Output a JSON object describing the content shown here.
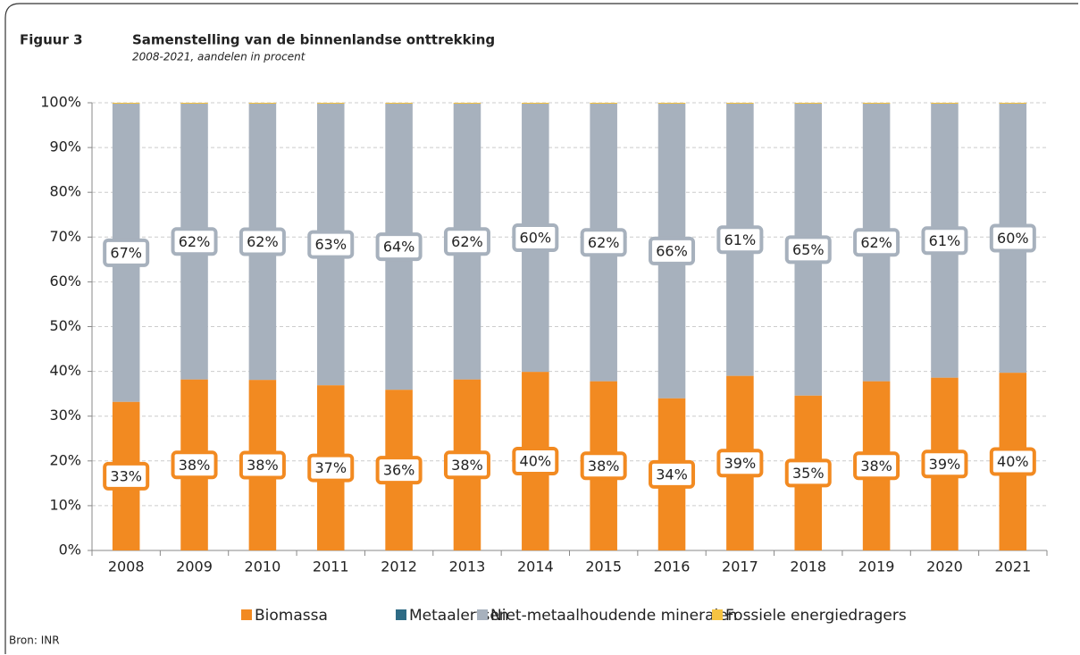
{
  "chart_data": {
    "type": "stacked-bar",
    "figure_label": "Figuur 3",
    "title": "Samenstelling van de binnenlandse onttrekking",
    "subtitle": "2008-2021, aandelen in procent",
    "source": "Bron: INR",
    "categories": [
      "2008",
      "2009",
      "2010",
      "2011",
      "2012",
      "2013",
      "2014",
      "2015",
      "2016",
      "2017",
      "2018",
      "2019",
      "2020",
      "2021"
    ],
    "series": [
      {
        "name": "Biomassa",
        "color": "#f28a21",
        "values": [
          33.2,
          38.2,
          38.1,
          36.9,
          35.9,
          38.2,
          39.9,
          37.8,
          34.0,
          39.0,
          34.6,
          37.8,
          38.6,
          39.7
        ],
        "value_labels": [
          "33%",
          "38%",
          "38%",
          "37%",
          "36%",
          "38%",
          "40%",
          "38%",
          "34%",
          "39%",
          "35%",
          "38%",
          "39%",
          "40%"
        ]
      },
      {
        "name": "Metaalertsen",
        "color": "#2e6b85",
        "values": [
          0,
          0,
          0,
          0,
          0,
          0,
          0,
          0,
          0,
          0,
          0,
          0,
          0,
          0
        ]
      },
      {
        "name": "Niet-metaalhoudende mineralen",
        "color": "#a7b1bd",
        "values": [
          66.6,
          61.6,
          61.7,
          62.9,
          63.9,
          61.6,
          59.9,
          62.0,
          65.8,
          60.8,
          65.2,
          62.0,
          61.2,
          60.1
        ],
        "value_labels": [
          "67%",
          "62%",
          "62%",
          "63%",
          "64%",
          "62%",
          "60%",
          "62%",
          "66%",
          "61%",
          "65%",
          "62%",
          "61%",
          "60%"
        ]
      },
      {
        "name": "Fossiele energiedragers",
        "color": "#f5c342",
        "values": [
          0.2,
          0.2,
          0.2,
          0.2,
          0.2,
          0.2,
          0.2,
          0.2,
          0.2,
          0.2,
          0.2,
          0.2,
          0.2,
          0.2
        ]
      }
    ],
    "ylim": [
      0,
      100
    ],
    "yticks": [
      {
        "value": 0,
        "label": "0%"
      },
      {
        "value": 10,
        "label": "10%"
      },
      {
        "value": 20,
        "label": "20%"
      },
      {
        "value": 30,
        "label": "30%"
      },
      {
        "value": 40,
        "label": "40%"
      },
      {
        "value": 50,
        "label": "50%"
      },
      {
        "value": 60,
        "label": "60%"
      },
      {
        "value": 70,
        "label": "70%"
      },
      {
        "value": 80,
        "label": "80%"
      },
      {
        "value": 90,
        "label": "90%"
      },
      {
        "value": 100,
        "label": "100%"
      }
    ],
    "grid": true,
    "legend": "bottom"
  }
}
